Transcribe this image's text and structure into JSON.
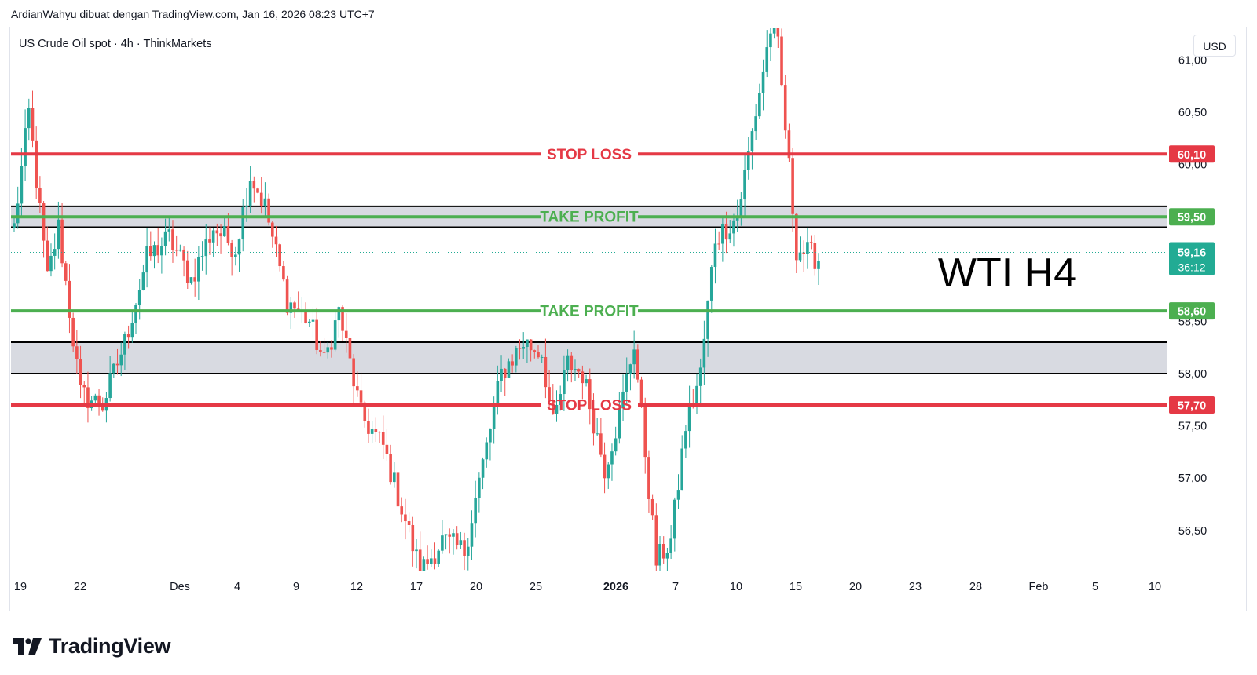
{
  "header": {
    "credit": "ArdianWahyu dibuat dengan TradingView.com, Jan 16, 2026 08:23 UTC+7"
  },
  "legend": {
    "symbol_line": "US Crude Oil spot · 4h · ThinkMarkets"
  },
  "price_scale": {
    "currency": "USD"
  },
  "branding": {
    "name": "TradingView",
    "logo_icon": "tradingview-logo-icon"
  },
  "colors": {
    "up": "#26a69a",
    "down": "#ef5350",
    "stop_loss": "#e53945",
    "take_profit": "#4caf50",
    "zone_fill": "#d1d4dc",
    "last_price": "#22ab94"
  },
  "chart_data": {
    "type": "candlestick",
    "title": "WTI H4",
    "xlabel": "",
    "ylabel": "",
    "ylim": [
      56.1,
      61.6
    ],
    "y_ticks": [
      "56,50",
      "57,00",
      "57,50",
      "58,00",
      "58,50",
      "60,00",
      "60,50",
      "61,00"
    ],
    "x_ticks": [
      "19",
      "22",
      "Des",
      "4",
      "9",
      "12",
      "17",
      "20",
      "25",
      "2026",
      "7",
      "10",
      "15",
      "20",
      "23",
      "28",
      "Feb",
      "5",
      "10"
    ],
    "last_price": {
      "value": "59,16",
      "countdown": "36:12"
    },
    "levels": [
      {
        "kind": "stop_loss",
        "label": "STOP LOSS",
        "price": 60.1,
        "badge": "60,10"
      },
      {
        "kind": "take_profit",
        "label": "TAKE PROFIT",
        "price": 59.5,
        "badge": "59,50"
      },
      {
        "kind": "take_profit",
        "label": "TAKE PROFIT",
        "price": 58.6,
        "badge": "58,60"
      },
      {
        "kind": "stop_loss",
        "label": "STOP LOSS",
        "price": 57.7,
        "badge": "57,70"
      }
    ],
    "zones": [
      {
        "from": 59.4,
        "to": 59.6
      },
      {
        "from": 58.0,
        "to": 58.3
      }
    ],
    "anchors": [
      [
        0,
        59.4
      ],
      [
        4,
        60.5
      ],
      [
        9,
        58.9
      ],
      [
        12,
        59.4
      ],
      [
        18,
        57.8
      ],
      [
        24,
        57.7
      ],
      [
        30,
        58.3
      ],
      [
        36,
        59.1
      ],
      [
        42,
        59.3
      ],
      [
        48,
        58.9
      ],
      [
        54,
        59.4
      ],
      [
        60,
        59.2
      ],
      [
        64,
        59.9
      ],
      [
        68,
        59.6
      ],
      [
        74,
        58.7
      ],
      [
        80,
        58.5
      ],
      [
        84,
        58.1
      ],
      [
        88,
        58.6
      ],
      [
        94,
        57.6
      ],
      [
        100,
        57.3
      ],
      [
        106,
        56.6
      ],
      [
        110,
        56.1
      ],
      [
        116,
        56.4
      ],
      [
        122,
        56.3
      ],
      [
        128,
        57.3
      ],
      [
        132,
        58.0
      ],
      [
        138,
        58.3
      ],
      [
        143,
        58.2
      ],
      [
        146,
        57.5
      ],
      [
        150,
        58.1
      ],
      [
        154,
        58.0
      ],
      [
        160,
        57.1
      ],
      [
        164,
        57.6
      ],
      [
        168,
        58.3
      ],
      [
        172,
        56.9
      ],
      [
        174,
        56.2
      ],
      [
        178,
        56.4
      ],
      [
        182,
        57.5
      ],
      [
        186,
        58.0
      ],
      [
        190,
        59.3
      ],
      [
        196,
        59.5
      ],
      [
        202,
        60.7
      ],
      [
        206,
        61.5
      ],
      [
        212,
        59.2
      ],
      [
        218,
        59.1
      ]
    ]
  }
}
